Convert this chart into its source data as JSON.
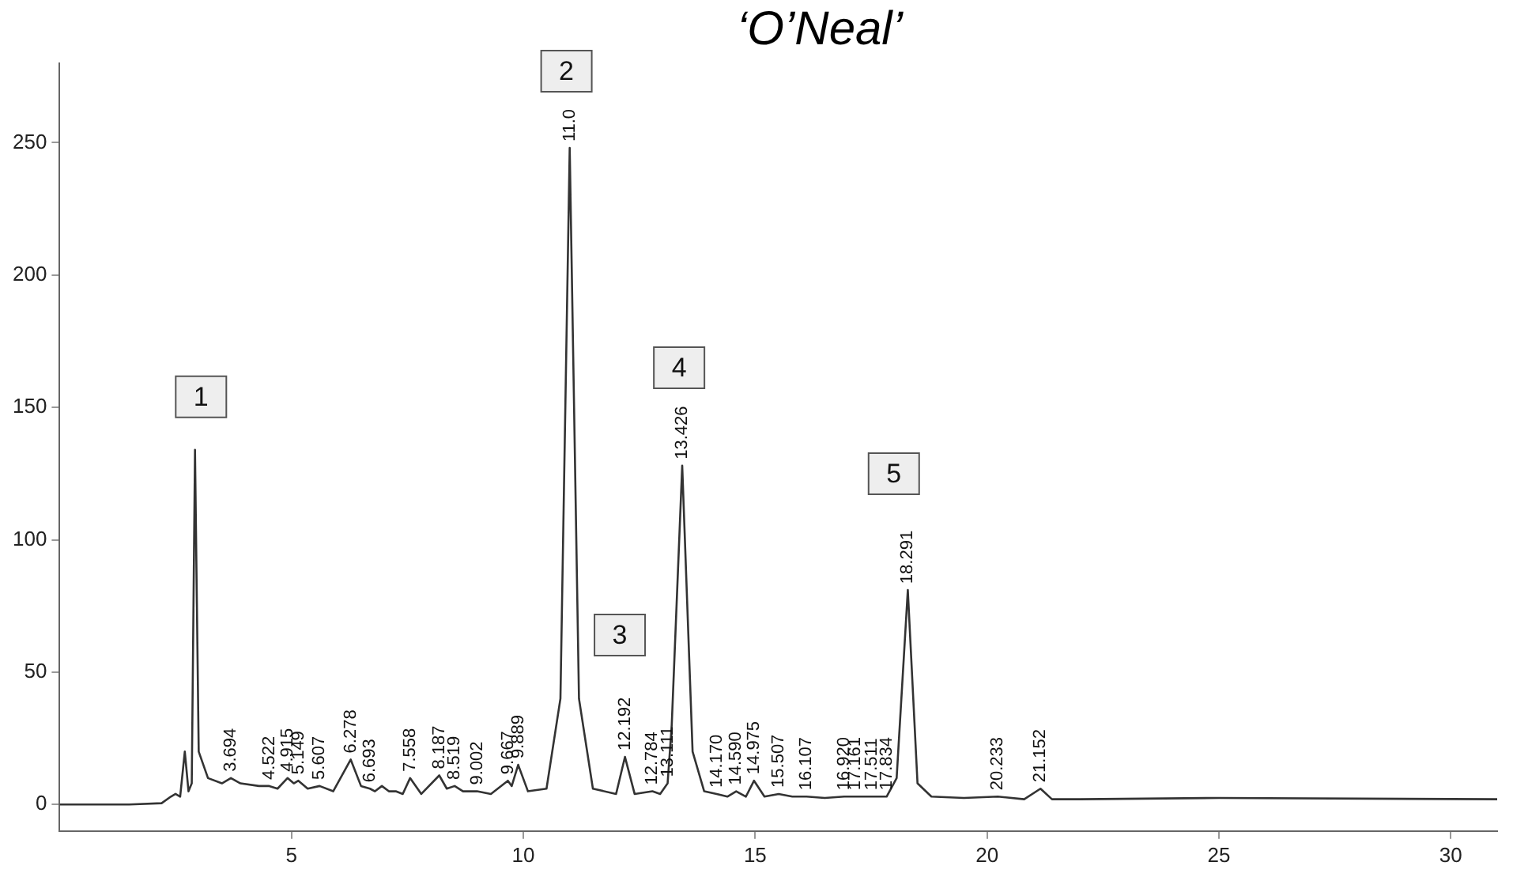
{
  "chart_data": {
    "type": "line",
    "title": "‘O’Neal’",
    "x": [
      0,
      1.5,
      2.2,
      2.4,
      2.5,
      2.6,
      2.7,
      2.78,
      2.85,
      2.92,
      3.0,
      3.2,
      3.5,
      3.694,
      3.9,
      4.3,
      4.522,
      4.7,
      4.915,
      5.05,
      5.149,
      5.35,
      5.607,
      5.9,
      6.278,
      6.5,
      6.693,
      6.8,
      6.95,
      7.1,
      7.25,
      7.4,
      7.558,
      7.8,
      8.187,
      8.35,
      8.519,
      8.7,
      9.002,
      9.3,
      9.667,
      9.75,
      9.889,
      10.1,
      10.5,
      10.8,
      11.0,
      11.2,
      11.5,
      12.0,
      12.192,
      12.4,
      12.784,
      12.95,
      13.111,
      13.2,
      13.426,
      13.65,
      13.9,
      14.17,
      14.4,
      14.59,
      14.8,
      14.975,
      15.2,
      15.507,
      15.8,
      16.107,
      16.5,
      16.92,
      17.161,
      17.511,
      17.834,
      18.05,
      18.291,
      18.5,
      18.8,
      19.5,
      20.233,
      20.8,
      21.152,
      21.4,
      22,
      25,
      31
    ],
    "series": [
      {
        "color": "#333333",
        "values": [
          0,
          0,
          0.5,
          3,
          4,
          3,
          20,
          5,
          8,
          134,
          20,
          10,
          8,
          10,
          8,
          7,
          7,
          6,
          10,
          8,
          9,
          6,
          7,
          5,
          17,
          7,
          6,
          5,
          7,
          5,
          5,
          4,
          10,
          4,
          11,
          6,
          7,
          5,
          5,
          4,
          9,
          7,
          15,
          5,
          6,
          40,
          248,
          40,
          6,
          4,
          18,
          4,
          5,
          4,
          8,
          30,
          128,
          20,
          5,
          4,
          3,
          5,
          3,
          9,
          3,
          4,
          3,
          3,
          2.5,
          3,
          3,
          3,
          3,
          10,
          81,
          8,
          3,
          2.5,
          3,
          2,
          6,
          2,
          2,
          2.5,
          2
        ]
      }
    ],
    "xlim": [
      0,
      31
    ],
    "xticks": [
      5,
      10,
      15,
      20,
      25,
      30
    ],
    "ylim": [
      -10,
      280
    ],
    "yticks": [
      0,
      50,
      100,
      150,
      200,
      250
    ],
    "grid": false,
    "legend": false,
    "marker": "none",
    "line_style": "solid",
    "annotations": [
      {
        "text": "1",
        "x": 3.05,
        "y": 154
      },
      {
        "text": "2",
        "x": 10.93,
        "y": 277
      },
      {
        "text": "3",
        "x": 12.08,
        "y": 64
      },
      {
        "text": "4",
        "x": 13.36,
        "y": 165
      },
      {
        "text": "5",
        "x": 17.99,
        "y": 125
      },
      {
        "text": "3.694",
        "x": 3.694,
        "y": 10
      },
      {
        "text": "4.522",
        "x": 4.522,
        "y": 7
      },
      {
        "text": "4.915",
        "x": 4.915,
        "y": 10
      },
      {
        "text": "5.149",
        "x": 5.149,
        "y": 9
      },
      {
        "text": "5.607",
        "x": 5.607,
        "y": 7
      },
      {
        "text": "6.278",
        "x": 6.278,
        "y": 17
      },
      {
        "text": "6.693",
        "x": 6.693,
        "y": 6
      },
      {
        "text": "7.558",
        "x": 7.558,
        "y": 10
      },
      {
        "text": "8.187",
        "x": 8.187,
        "y": 11
      },
      {
        "text": "8.519",
        "x": 8.519,
        "y": 7
      },
      {
        "text": "9.002",
        "x": 9.002,
        "y": 5
      },
      {
        "text": "9.667",
        "x": 9.667,
        "y": 9
      },
      {
        "text": "9.889",
        "x": 9.889,
        "y": 15
      },
      {
        "text": "11.0",
        "x": 11.0,
        "y": 248
      },
      {
        "text": "12.192",
        "x": 12.192,
        "y": 18
      },
      {
        "text": "12.784",
        "x": 12.784,
        "y": 5
      },
      {
        "text": "13.111",
        "x": 13.111,
        "y": 8
      },
      {
        "text": "13.426",
        "x": 13.426,
        "y": 128
      },
      {
        "text": "14.170",
        "x": 14.17,
        "y": 4
      },
      {
        "text": "14.590",
        "x": 14.59,
        "y": 5
      },
      {
        "text": "14.975",
        "x": 14.975,
        "y": 9
      },
      {
        "text": "15.507",
        "x": 15.507,
        "y": 4
      },
      {
        "text": "16.107",
        "x": 16.107,
        "y": 3
      },
      {
        "text": "16.920",
        "x": 16.92,
        "y": 3
      },
      {
        "text": "17.161",
        "x": 17.161,
        "y": 3
      },
      {
        "text": "17.511",
        "x": 17.511,
        "y": 3
      },
      {
        "text": "17.834",
        "x": 17.834,
        "y": 3
      },
      {
        "text": "18.291",
        "x": 18.291,
        "y": 81
      },
      {
        "text": "20.233",
        "x": 20.233,
        "y": 3
      },
      {
        "text": "21.152",
        "x": 21.152,
        "y": 6
      }
    ]
  }
}
